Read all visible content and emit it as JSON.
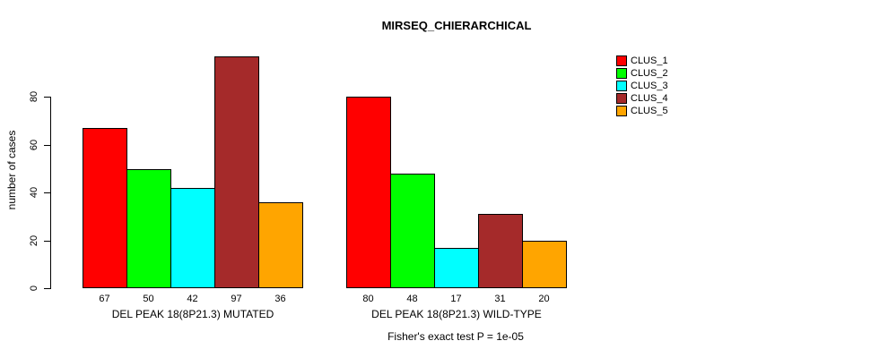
{
  "chart_data": {
    "type": "bar",
    "title": "MIRSEQ_CHIERARCHICAL",
    "ylabel": "number of cases",
    "yticks": [
      0,
      20,
      40,
      60,
      80
    ],
    "ylim": [
      0,
      97
    ],
    "grid": false,
    "legend_position": "right",
    "bar_value_labels_shown": true,
    "categories": [
      "DEL PEAK 18(8P21.3) MUTATED",
      "DEL PEAK 18(8P21.3) WILD-TYPE"
    ],
    "series": [
      {
        "name": "CLUS_1",
        "color": "#FF0000",
        "values": [
          67,
          80
        ]
      },
      {
        "name": "CLUS_2",
        "color": "#00FF00",
        "values": [
          50,
          48
        ]
      },
      {
        "name": "CLUS_3",
        "color": "#00FFFF",
        "values": [
          42,
          17
        ]
      },
      {
        "name": "CLUS_4",
        "color": "#A52A2A",
        "values": [
          97,
          31
        ]
      },
      {
        "name": "CLUS_5",
        "color": "#FFA500",
        "values": [
          36,
          20
        ]
      }
    ],
    "footnote": "Fisher's exact test P = 1e-05"
  }
}
